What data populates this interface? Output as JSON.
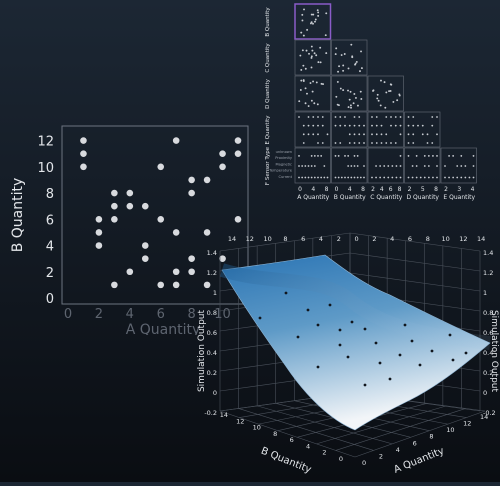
{
  "chart_data": [
    {
      "type": "scatter",
      "xlabel": "A Quantity",
      "ylabel": "B Quantity",
      "xlim": [
        0,
        11
      ],
      "ylim": [
        0,
        12.5
      ],
      "x_ticks": [
        "0",
        "2",
        "4",
        "6",
        "8",
        "10"
      ],
      "y_ticks": [
        "0",
        "2",
        "4",
        "6",
        "8",
        "10",
        "12"
      ],
      "points": [
        {
          "x": 1,
          "y": 12
        },
        {
          "x": 1,
          "y": 11
        },
        {
          "x": 1,
          "y": 10
        },
        {
          "x": 2,
          "y": 6
        },
        {
          "x": 2,
          "y": 5
        },
        {
          "x": 2,
          "y": 4
        },
        {
          "x": 3,
          "y": 8
        },
        {
          "x": 3,
          "y": 7
        },
        {
          "x": 3,
          "y": 6
        },
        {
          "x": 3,
          "y": 1
        },
        {
          "x": 4,
          "y": 8
        },
        {
          "x": 4,
          "y": 7
        },
        {
          "x": 4,
          "y": 2
        },
        {
          "x": 5,
          "y": 7
        },
        {
          "x": 5,
          "y": 4
        },
        {
          "x": 5,
          "y": 3
        },
        {
          "x": 6,
          "y": 10
        },
        {
          "x": 6,
          "y": 6
        },
        {
          "x": 6,
          "y": 1
        },
        {
          "x": 7,
          "y": 12
        },
        {
          "x": 7,
          "y": 5
        },
        {
          "x": 7,
          "y": 2
        },
        {
          "x": 7,
          "y": 1
        },
        {
          "x": 8,
          "y": 9
        },
        {
          "x": 8,
          "y": 8
        },
        {
          "x": 8,
          "y": 3
        },
        {
          "x": 8,
          "y": 2
        },
        {
          "x": 9,
          "y": 9
        },
        {
          "x": 9,
          "y": 5
        },
        {
          "x": 9,
          "y": 1
        },
        {
          "x": 10,
          "y": 11
        },
        {
          "x": 10,
          "y": 10
        },
        {
          "x": 10,
          "y": 3
        },
        {
          "x": 11,
          "y": 12
        },
        {
          "x": 11,
          "y": 11
        },
        {
          "x": 11,
          "y": 6
        }
      ]
    },
    {
      "type": "scatter",
      "layout": "scatterplot-matrix-lower-triangle",
      "row_labels": [
        "B Quantity",
        "C Quantity",
        "D Quantity",
        "E Quantity",
        "F Sensor Type"
      ],
      "col_labels": [
        "A Quantity",
        "B Quantity",
        "C Quantity",
        "D Quantity",
        "E Quantity"
      ],
      "col_ticks": [
        [
          "0",
          "4",
          "8"
        ],
        [
          "0",
          "4",
          "8"
        ],
        [
          "2",
          "4",
          "6",
          "8"
        ],
        [
          "2",
          "5",
          "8"
        ],
        [
          "2",
          "3",
          "4"
        ]
      ],
      "f_sensor_categories": [
        "unknown",
        "Proximity",
        "Magnetic",
        "Temperature",
        "Current"
      ],
      "highlighted_cell": "B Quantity vs A Quantity"
    },
    {
      "type": "surface",
      "zlabel": "Simulation Output",
      "xlabel": "B Quantity",
      "ylabel": "A Quantity",
      "zlim": [
        -0.2,
        1.4
      ],
      "z_ticks": [
        "-0.2",
        "0",
        "0.2",
        "0.4",
        "0.6",
        "0.8",
        "1",
        "1.2",
        "1.4"
      ],
      "axis_ticks": [
        "0",
        "2",
        "4",
        "6",
        "8",
        "10",
        "12",
        "14"
      ],
      "surface_colormap": [
        "#ffffff",
        "#2a74b4"
      ]
    }
  ]
}
